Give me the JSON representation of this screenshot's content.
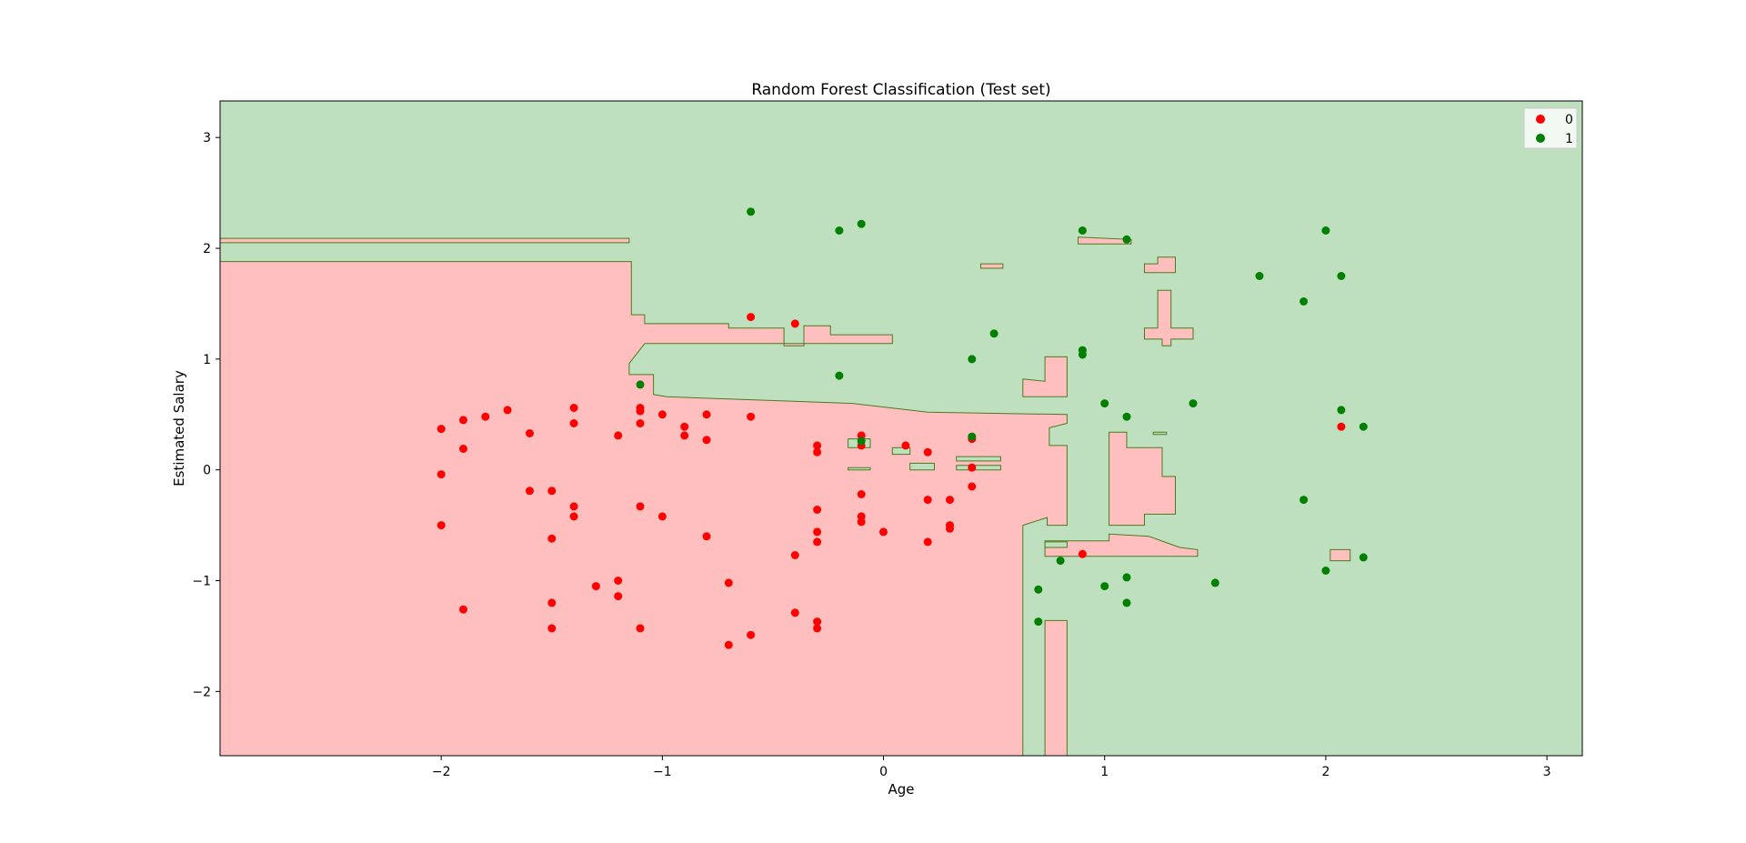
{
  "chart_data": {
    "type": "scatter",
    "title": "Random Forest Classification (Test set)",
    "xlabel": "Age",
    "ylabel": "Estimated Salary",
    "xlim": [
      -3.0,
      3.16
    ],
    "ylim": [
      -2.58,
      3.33
    ],
    "xticks": [
      -2,
      -1,
      0,
      1,
      2,
      3
    ],
    "yticks": [
      -2,
      -1,
      0,
      1,
      2,
      3
    ],
    "tick_labels": {
      "x": [
        "−2",
        "−1",
        "0",
        "1",
        "2",
        "3"
      ],
      "y": [
        "−2",
        "−1",
        "0",
        "1",
        "2",
        "3"
      ]
    },
    "grid": false,
    "legend_position": "top-right",
    "colors": {
      "class_0_point": "#ff0000",
      "class_1_point": "#008000",
      "class_0_region": "#ffbfbf",
      "class_1_region": "#bfe0bf",
      "boundary": "#4c7a1e"
    },
    "decision_regions": {
      "background_class": "1",
      "class_0_regions": [
        [
          [
            -3.0,
            1.88
          ],
          [
            -1.14,
            1.88
          ],
          [
            -1.14,
            1.4
          ],
          [
            -1.08,
            1.4
          ],
          [
            -1.08,
            1.32
          ],
          [
            -0.7,
            1.32
          ],
          [
            -0.7,
            1.28
          ],
          [
            -0.45,
            1.28
          ],
          [
            -0.45,
            1.12
          ],
          [
            -0.36,
            1.12
          ],
          [
            -0.36,
            1.3
          ],
          [
            -0.24,
            1.3
          ],
          [
            -0.24,
            1.22
          ],
          [
            0.04,
            1.22
          ],
          [
            0.04,
            1.14
          ],
          [
            -1.08,
            1.14
          ],
          [
            -1.15,
            0.96
          ],
          [
            -1.15,
            0.86
          ],
          [
            -1.04,
            0.86
          ],
          [
            -1.04,
            0.68
          ],
          [
            -0.98,
            0.66
          ],
          [
            -0.7,
            0.64
          ],
          [
            -0.14,
            0.6
          ],
          [
            0.2,
            0.52
          ],
          [
            0.83,
            0.5
          ],
          [
            0.83,
            0.42
          ],
          [
            0.75,
            0.38
          ],
          [
            0.75,
            0.22
          ],
          [
            0.83,
            0.22
          ],
          [
            0.83,
            -0.5
          ],
          [
            0.74,
            -0.5
          ],
          [
            0.74,
            -0.43
          ],
          [
            0.63,
            -0.5
          ],
          [
            0.63,
            -2.58
          ],
          [
            -3.0,
            -2.58
          ]
        ],
        [
          [
            -3.0,
            2.09
          ],
          [
            -1.15,
            2.09
          ],
          [
            -1.15,
            2.05
          ],
          [
            -3.0,
            2.05
          ]
        ],
        [
          [
            0.73,
            -2.58
          ],
          [
            0.83,
            -2.58
          ],
          [
            0.83,
            -1.36
          ],
          [
            0.73,
            -1.36
          ]
        ],
        [
          [
            0.63,
            0.82
          ],
          [
            0.73,
            0.8
          ],
          [
            0.73,
            1.02
          ],
          [
            0.83,
            1.02
          ],
          [
            0.83,
            0.66
          ],
          [
            0.63,
            0.66
          ]
        ],
        [
          [
            1.02,
            0.34
          ],
          [
            1.1,
            0.34
          ],
          [
            1.1,
            0.2
          ],
          [
            1.26,
            0.2
          ],
          [
            1.26,
            -0.06
          ],
          [
            1.32,
            -0.06
          ],
          [
            1.32,
            -0.4
          ],
          [
            1.18,
            -0.4
          ],
          [
            1.18,
            -0.5
          ],
          [
            1.02,
            -0.5
          ]
        ],
        [
          [
            1.18,
            1.28
          ],
          [
            1.24,
            1.28
          ],
          [
            1.24,
            1.62
          ],
          [
            1.3,
            1.62
          ],
          [
            1.3,
            1.28
          ],
          [
            1.4,
            1.28
          ],
          [
            1.4,
            1.18
          ],
          [
            1.3,
            1.18
          ],
          [
            1.3,
            1.12
          ],
          [
            1.26,
            1.12
          ],
          [
            1.26,
            1.18
          ],
          [
            1.18,
            1.18
          ]
        ],
        [
          [
            1.18,
            1.86
          ],
          [
            1.24,
            1.86
          ],
          [
            1.24,
            1.92
          ],
          [
            1.32,
            1.92
          ],
          [
            1.32,
            1.78
          ],
          [
            1.18,
            1.78
          ]
        ],
        [
          [
            0.73,
            -0.64
          ],
          [
            1.02,
            -0.64
          ],
          [
            1.02,
            -0.58
          ],
          [
            1.2,
            -0.6
          ],
          [
            1.34,
            -0.7
          ],
          [
            1.42,
            -0.72
          ],
          [
            1.42,
            -0.78
          ],
          [
            0.73,
            -0.78
          ]
        ],
        [
          [
            0.44,
            1.86
          ],
          [
            0.54,
            1.86
          ],
          [
            0.54,
            1.82
          ],
          [
            0.44,
            1.82
          ]
        ],
        [
          [
            0.88,
            2.1
          ],
          [
            1.12,
            2.08
          ],
          [
            1.12,
            2.04
          ],
          [
            0.88,
            2.04
          ]
        ],
        [
          [
            2.02,
            -0.72
          ],
          [
            2.11,
            -0.72
          ],
          [
            2.11,
            -0.82
          ],
          [
            2.02,
            -0.82
          ]
        ]
      ],
      "class_1_islands_inside": [
        [
          [
            -0.16,
            0.28
          ],
          [
            -0.06,
            0.28
          ],
          [
            -0.06,
            0.2
          ],
          [
            -0.16,
            0.2
          ]
        ],
        [
          [
            0.04,
            0.2
          ],
          [
            0.12,
            0.2
          ],
          [
            0.12,
            0.14
          ],
          [
            0.04,
            0.14
          ]
        ],
        [
          [
            0.33,
            0.12
          ],
          [
            0.53,
            0.12
          ],
          [
            0.53,
            0.08
          ],
          [
            0.33,
            0.08
          ]
        ],
        [
          [
            0.33,
            0.04
          ],
          [
            0.53,
            0.04
          ],
          [
            0.53,
            0.0
          ],
          [
            0.33,
            0.0
          ]
        ],
        [
          [
            -0.16,
            0.02
          ],
          [
            -0.06,
            0.02
          ],
          [
            -0.06,
            0.0
          ],
          [
            -0.16,
            0.0
          ]
        ],
        [
          [
            0.12,
            0.06
          ],
          [
            0.23,
            0.06
          ],
          [
            0.23,
            0.0
          ],
          [
            0.12,
            0.0
          ]
        ],
        [
          [
            1.22,
            0.34
          ],
          [
            1.28,
            0.34
          ],
          [
            1.28,
            0.32
          ],
          [
            1.22,
            0.32
          ]
        ],
        [
          [
            0.73,
            -0.65
          ],
          [
            0.83,
            -0.65
          ],
          [
            0.83,
            -0.7
          ],
          [
            0.73,
            -0.7
          ]
        ]
      ]
    },
    "series": [
      {
        "name": "0",
        "color": "#ff0000",
        "points": [
          [
            -2.0,
            0.37
          ],
          [
            -1.9,
            0.45
          ],
          [
            -1.8,
            0.48
          ],
          [
            -1.7,
            0.54
          ],
          [
            -1.4,
            0.56
          ],
          [
            -1.1,
            0.56
          ],
          [
            -1.1,
            0.53
          ],
          [
            -1.0,
            0.5
          ],
          [
            -0.8,
            0.5
          ],
          [
            -0.6,
            0.48
          ],
          [
            -1.9,
            0.19
          ],
          [
            -1.6,
            0.33
          ],
          [
            -1.4,
            0.42
          ],
          [
            -1.2,
            0.31
          ],
          [
            -1.1,
            0.42
          ],
          [
            -0.9,
            0.39
          ],
          [
            -0.9,
            0.31
          ],
          [
            -0.8,
            0.27
          ],
          [
            -2.0,
            -0.04
          ],
          [
            -1.6,
            -0.19
          ],
          [
            -1.5,
            -0.19
          ],
          [
            -1.4,
            -0.33
          ],
          [
            -1.4,
            -0.42
          ],
          [
            -1.1,
            -0.33
          ],
          [
            -1.0,
            -0.42
          ],
          [
            -2.0,
            -0.5
          ],
          [
            -1.5,
            -0.62
          ],
          [
            -0.8,
            -0.6
          ],
          [
            -1.3,
            -1.05
          ],
          [
            -1.2,
            -1.0
          ],
          [
            -1.2,
            -1.14
          ],
          [
            -1.5,
            -1.2
          ],
          [
            -1.9,
            -1.26
          ],
          [
            -1.5,
            -1.43
          ],
          [
            -1.1,
            -1.43
          ],
          [
            -0.7,
            -1.02
          ],
          [
            -0.6,
            -1.49
          ],
          [
            -0.7,
            -1.58
          ],
          [
            -0.4,
            -0.77
          ],
          [
            -0.4,
            -1.29
          ],
          [
            -0.3,
            -1.37
          ],
          [
            -0.3,
            -1.43
          ],
          [
            -0.3,
            -0.36
          ],
          [
            -0.3,
            -0.56
          ],
          [
            -0.3,
            -0.65
          ],
          [
            -0.3,
            0.22
          ],
          [
            -0.3,
            0.16
          ],
          [
            -0.1,
            0.31
          ],
          [
            -0.1,
            0.22
          ],
          [
            0.1,
            0.22
          ],
          [
            0.2,
            0.16
          ],
          [
            0.4,
            0.28
          ],
          [
            0.4,
            0.02
          ],
          [
            0.4,
            -0.15
          ],
          [
            -0.1,
            -0.22
          ],
          [
            -0.1,
            -0.42
          ],
          [
            -0.1,
            -0.47
          ],
          [
            0.0,
            -0.56
          ],
          [
            0.2,
            -0.27
          ],
          [
            0.3,
            -0.27
          ],
          [
            0.3,
            -0.5
          ],
          [
            0.3,
            -0.53
          ],
          [
            0.2,
            -0.65
          ],
          [
            0.9,
            -0.76
          ],
          [
            -0.6,
            1.38
          ],
          [
            -0.4,
            1.32
          ],
          [
            2.07,
            0.39
          ]
        ]
      },
      {
        "name": "1",
        "color": "#008000",
        "points": [
          [
            -0.6,
            2.33
          ],
          [
            -0.2,
            2.16
          ],
          [
            -0.1,
            2.22
          ],
          [
            0.9,
            2.16
          ],
          [
            1.1,
            2.08
          ],
          [
            2.0,
            2.16
          ],
          [
            1.7,
            1.75
          ],
          [
            2.07,
            1.75
          ],
          [
            1.9,
            1.52
          ],
          [
            0.5,
            1.23
          ],
          [
            0.9,
            1.08
          ],
          [
            0.9,
            1.04
          ],
          [
            0.4,
            1.0
          ],
          [
            -0.2,
            0.85
          ],
          [
            -1.1,
            0.77
          ],
          [
            1.0,
            0.6
          ],
          [
            1.4,
            0.6
          ],
          [
            1.1,
            0.48
          ],
          [
            2.07,
            0.54
          ],
          [
            2.17,
            0.39
          ],
          [
            0.4,
            0.3
          ],
          [
            -0.1,
            0.26
          ],
          [
            1.9,
            -0.27
          ],
          [
            0.8,
            -0.82
          ],
          [
            0.7,
            -1.08
          ],
          [
            1.0,
            -1.05
          ],
          [
            1.1,
            -0.97
          ],
          [
            1.5,
            -1.02
          ],
          [
            2.0,
            -0.91
          ],
          [
            2.17,
            -0.79
          ],
          [
            1.1,
            -1.2
          ],
          [
            0.7,
            -1.37
          ]
        ]
      }
    ],
    "legend": [
      {
        "label": "0",
        "color": "#ff0000"
      },
      {
        "label": "1",
        "color": "#008000"
      }
    ]
  }
}
